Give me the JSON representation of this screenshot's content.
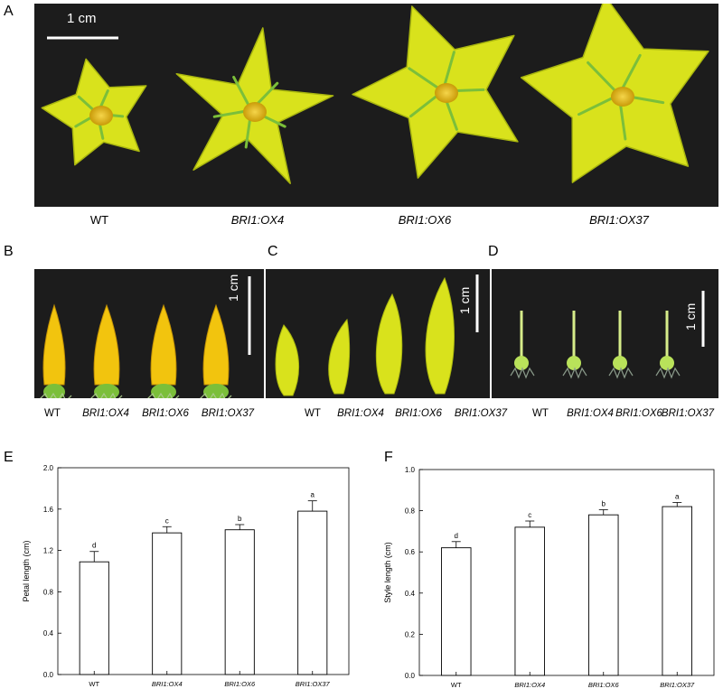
{
  "panels": {
    "a": {
      "letter": "A",
      "scale_bar": "1 cm",
      "labels": [
        "WT",
        "BRI1:OX4",
        "BRI1:OX6",
        "BRI1:OX37"
      ]
    },
    "b": {
      "letter": "B",
      "scale_bar": "1 cm",
      "labels": [
        "WT",
        "BRI1:OX4",
        "BRI1:OX6",
        "BRI1:OX37"
      ]
    },
    "c": {
      "letter": "C",
      "scale_bar": "1 cm",
      "labels": [
        "WT",
        "BRI1:OX4",
        "BRI1:OX6",
        "BRI1:OX37"
      ]
    },
    "d": {
      "letter": "D",
      "scale_bar": "1 cm",
      "labels": [
        "WT",
        "BRI1:OX4",
        "BRI1:OX6",
        "BRI1:OX37"
      ]
    },
    "e": {
      "letter": "E"
    },
    "f": {
      "letter": "F"
    }
  },
  "colors": {
    "petal": "#d9e21c",
    "petal_dark": "#a9b60f",
    "center": "#e8b80c",
    "bud": "#f2c40e",
    "green": "#7bbf3a",
    "background": "#1c1c1c"
  },
  "chart_data": [
    {
      "type": "bar",
      "panel": "E",
      "categories": [
        "WT",
        "BRI1:OX4",
        "BRI1:OX6",
        "BRI1:OX37"
      ],
      "values": [
        1.09,
        1.37,
        1.4,
        1.58
      ],
      "errors": [
        0.1,
        0.06,
        0.05,
        0.1
      ],
      "significance": [
        "d",
        "c",
        "b",
        "a"
      ],
      "ylabel": "Petal length (cm)",
      "ylim": [
        0.0,
        2.0
      ],
      "yticks": [
        "0.0",
        "0.4",
        "0.8",
        "1.2",
        "1.6",
        "2.0"
      ],
      "grid": false
    },
    {
      "type": "bar",
      "panel": "F",
      "categories": [
        "WT",
        "BRI1:OX4",
        "BRI1:OX6",
        "BRI1:OX37"
      ],
      "values": [
        0.62,
        0.72,
        0.78,
        0.82
      ],
      "errors": [
        0.03,
        0.03,
        0.025,
        0.02
      ],
      "significance": [
        "d",
        "c",
        "b",
        "a"
      ],
      "ylabel": "Style length (cm)",
      "ylim": [
        0.0,
        1.0
      ],
      "yticks": [
        "0.0",
        "0.2",
        "0.4",
        "0.6",
        "0.8",
        "1.0"
      ],
      "grid": false
    }
  ]
}
